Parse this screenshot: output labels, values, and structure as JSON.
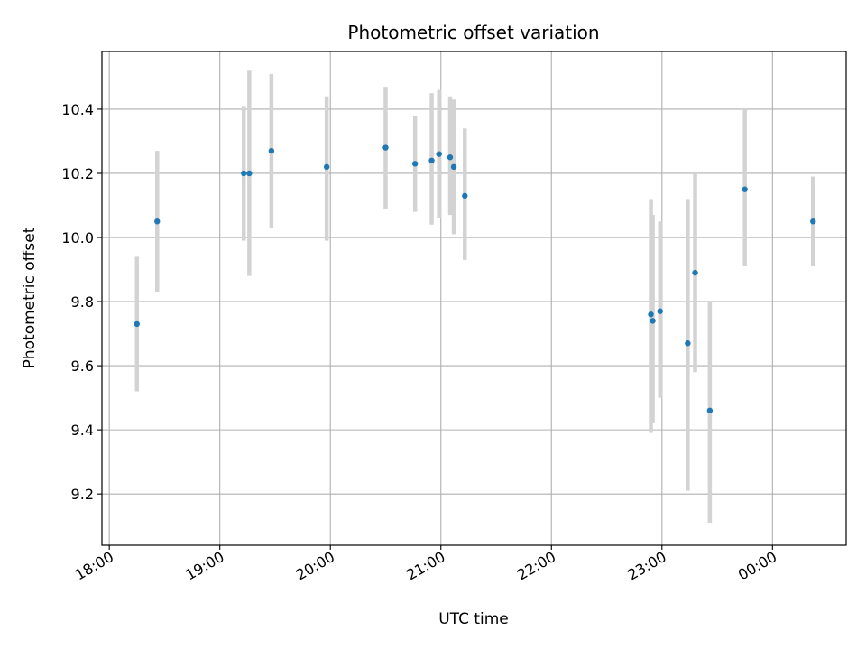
{
  "chart_data": {
    "type": "scatter",
    "title": "Photometric offset variation",
    "xlabel": "UTC time",
    "ylabel": "Photometric offset",
    "x_axis_kind": "time",
    "x_ticks": [
      "18:00",
      "19:00",
      "20:00",
      "21:00",
      "22:00",
      "23:00",
      "00:00"
    ],
    "y_ticks": [
      "9.2",
      "9.4",
      "9.6",
      "9.8",
      "10.0",
      "10.2",
      "10.4"
    ],
    "xlim": [
      "17:56",
      "00:40"
    ],
    "ylim": [
      9.04,
      10.58
    ],
    "grid": true,
    "legend": "none",
    "colors": {
      "point": "#1f77b4",
      "errorbar": "#d3d3d3",
      "grid": "#b0b0b0"
    },
    "points": [
      {
        "x": "18:15",
        "y": 9.73,
        "ylo": 9.52,
        "yhi": 9.94
      },
      {
        "x": "18:26",
        "y": 10.05,
        "ylo": 9.83,
        "yhi": 10.27
      },
      {
        "x": "19:13",
        "y": 10.2,
        "ylo": 9.99,
        "yhi": 10.41
      },
      {
        "x": "19:16",
        "y": 10.2,
        "ylo": 9.88,
        "yhi": 10.52
      },
      {
        "x": "19:28",
        "y": 10.27,
        "ylo": 10.03,
        "yhi": 10.51
      },
      {
        "x": "19:58",
        "y": 10.22,
        "ylo": 9.99,
        "yhi": 10.44
      },
      {
        "x": "20:30",
        "y": 10.28,
        "ylo": 10.09,
        "yhi": 10.47
      },
      {
        "x": "20:46",
        "y": 10.23,
        "ylo": 10.08,
        "yhi": 10.38
      },
      {
        "x": "20:55",
        "y": 10.24,
        "ylo": 10.04,
        "yhi": 10.45
      },
      {
        "x": "20:59",
        "y": 10.26,
        "ylo": 10.06,
        "yhi": 10.46
      },
      {
        "x": "21:05",
        "y": 10.25,
        "ylo": 10.07,
        "yhi": 10.44
      },
      {
        "x": "21:07",
        "y": 10.22,
        "ylo": 10.01,
        "yhi": 10.43
      },
      {
        "x": "21:13",
        "y": 10.13,
        "ylo": 9.93,
        "yhi": 10.34
      },
      {
        "x": "22:54",
        "y": 9.76,
        "ylo": 9.39,
        "yhi": 10.12
      },
      {
        "x": "22:55",
        "y": 9.74,
        "ylo": 9.42,
        "yhi": 10.07
      },
      {
        "x": "22:59",
        "y": 9.77,
        "ylo": 9.5,
        "yhi": 10.05
      },
      {
        "x": "23:14",
        "y": 9.67,
        "ylo": 9.21,
        "yhi": 10.12
      },
      {
        "x": "23:18",
        "y": 9.89,
        "ylo": 9.58,
        "yhi": 10.2
      },
      {
        "x": "23:26",
        "y": 9.46,
        "ylo": 9.11,
        "yhi": 9.8
      },
      {
        "x": "23:45",
        "y": 10.15,
        "ylo": 9.91,
        "yhi": 10.4
      },
      {
        "x": "00:22",
        "y": 10.05,
        "ylo": 9.91,
        "yhi": 10.19
      }
    ]
  }
}
